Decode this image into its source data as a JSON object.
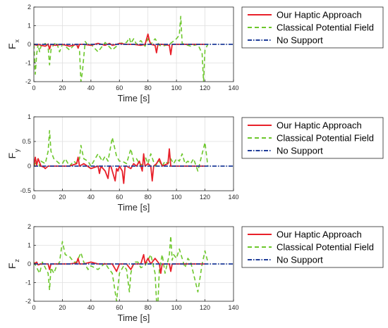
{
  "chart_data": [
    {
      "type": "line",
      "ylabel_main": "F",
      "ylabel_sub": "x",
      "xlabel": "Time [s]",
      "xlim": [
        0,
        140
      ],
      "ylim": [
        -2,
        2
      ],
      "xticks": [
        0,
        20,
        40,
        60,
        80,
        100,
        120,
        140
      ],
      "yticks": [
        -2,
        -1,
        0,
        1,
        2
      ],
      "grid": true,
      "legend_position": "right",
      "series": [
        {
          "name": "Our Haptic Approach",
          "color": "#e8202a",
          "style": "solid",
          "x": [
            0,
            2,
            3,
            5,
            8,
            10,
            11,
            12,
            15,
            20,
            25,
            30,
            31,
            32,
            33,
            35,
            40,
            45,
            50,
            53,
            55,
            58,
            60,
            65,
            70,
            75,
            78,
            80,
            81,
            82,
            85,
            86,
            87,
            90,
            95,
            96,
            97,
            100,
            105,
            110,
            120
          ],
          "y": [
            0,
            -0.05,
            0,
            -0.05,
            -0.1,
            0.02,
            -0.25,
            0,
            -0.05,
            0,
            -0.1,
            0,
            -0.2,
            0,
            0,
            0,
            -0.05,
            0.05,
            -0.05,
            0.05,
            -0.05,
            0,
            0.05,
            0,
            0,
            -0.05,
            0,
            0.55,
            0.2,
            0,
            -0.05,
            -0.45,
            0,
            0,
            -0.05,
            -0.55,
            0,
            0,
            0,
            0,
            0
          ]
        },
        {
          "name": "Classical Potential Field",
          "color": "#6cc72b",
          "style": "dashed",
          "x": [
            0,
            1,
            2,
            3,
            4,
            5,
            8,
            10,
            11,
            12,
            14,
            16,
            18,
            20,
            22,
            25,
            28,
            30,
            32,
            33,
            34,
            36,
            38,
            40,
            45,
            50,
            55,
            58,
            60,
            65,
            67,
            68,
            70,
            72,
            75,
            78,
            80,
            82,
            85,
            88,
            90,
            95,
            100,
            102,
            103,
            104,
            106,
            110,
            115,
            118,
            119,
            120,
            122
          ],
          "y": [
            0,
            -1.6,
            -0.5,
            0,
            -0.4,
            -0.1,
            0.05,
            -0.15,
            -1.1,
            -0.3,
            0,
            0.1,
            -0.4,
            0,
            -0.1,
            -0.3,
            -0.05,
            0,
            -0.3,
            -2,
            -1.5,
            0.15,
            -0.05,
            0,
            -0.4,
            0.1,
            -0.3,
            -0.1,
            0.05,
            0.1,
            0.35,
            0.05,
            0.3,
            0,
            0.2,
            -0.1,
            0.3,
            0,
            0.3,
            -0.05,
            -0.1,
            0,
            0.3,
            0.5,
            1.5,
            0.05,
            0,
            -0.1,
            0,
            -0.5,
            -2,
            -0.3,
            0
          ]
        },
        {
          "name": "No Support",
          "color": "#1f3d99",
          "style": "dashdot",
          "x": [
            0,
            140
          ],
          "y": [
            0,
            0
          ]
        }
      ]
    },
    {
      "type": "line",
      "ylabel_main": "F",
      "ylabel_sub": "y",
      "xlabel": "Time [s]",
      "xlim": [
        0,
        140
      ],
      "ylim": [
        -0.5,
        1
      ],
      "xticks": [
        0,
        20,
        40,
        60,
        80,
        100,
        120,
        140
      ],
      "yticks": [
        -0.5,
        0,
        0.5,
        1
      ],
      "grid": true,
      "legend_position": "right",
      "series": [
        {
          "name": "Our Haptic Approach",
          "color": "#e8202a",
          "style": "solid",
          "x": [
            0,
            1,
            2,
            3,
            5,
            7,
            8,
            10,
            15,
            20,
            25,
            30,
            31,
            32,
            35,
            40,
            45,
            46,
            47,
            50,
            52,
            53,
            54,
            55,
            57,
            58,
            59,
            60,
            62,
            63,
            64,
            65,
            68,
            70,
            72,
            74,
            76,
            77,
            78,
            80,
            82,
            83,
            84,
            86,
            88,
            90,
            94,
            95,
            96,
            98,
            100,
            110,
            120
          ],
          "y": [
            0,
            0.18,
            0.02,
            0.15,
            0,
            -0.02,
            -0.05,
            0,
            0,
            0,
            0,
            0.05,
            0.18,
            0,
            0.05,
            -0.05,
            0,
            -0.15,
            0,
            -0.1,
            -0.25,
            0,
            0,
            -0.1,
            -0.3,
            -0.05,
            -0.1,
            0,
            -0.1,
            -0.35,
            0,
            0,
            -0.05,
            0.05,
            0,
            0.1,
            -0.1,
            0.25,
            0,
            0.05,
            0,
            -0.3,
            0,
            0.05,
            0.15,
            0,
            0.05,
            0.35,
            0,
            0,
            0,
            0,
            0
          ]
        },
        {
          "name": "Classical Potential Field",
          "color": "#6cc72b",
          "style": "dashed",
          "x": [
            0,
            2,
            3,
            4,
            5,
            8,
            10,
            11,
            12,
            14,
            18,
            20,
            22,
            25,
            28,
            30,
            32,
            33,
            35,
            38,
            40,
            45,
            48,
            50,
            52,
            55,
            58,
            60,
            62,
            65,
            68,
            70,
            72,
            75,
            78,
            80,
            82,
            85,
            88,
            90,
            92,
            94,
            96,
            98,
            100,
            102,
            104,
            106,
            108,
            110,
            112,
            115,
            118,
            120,
            122
          ],
          "y": [
            0,
            0.1,
            0.15,
            0,
            0.1,
            0.05,
            0.3,
            0.72,
            0.3,
            0.15,
            0.05,
            0.05,
            0.15,
            0,
            0.1,
            0.05,
            0.15,
            0.42,
            0.15,
            0.1,
            0,
            0.25,
            0.1,
            0.2,
            0.1,
            0.58,
            0.2,
            0.1,
            0.1,
            0.05,
            0.35,
            0.1,
            0.15,
            0,
            0.2,
            0.05,
            0.25,
            0,
            0.1,
            0,
            0.1,
            0.05,
            0.15,
            0.05,
            0.15,
            0.1,
            0.25,
            0.05,
            0.1,
            0.05,
            0.15,
            -0.1,
            0.25,
            0.48,
            0
          ]
        },
        {
          "name": "No Support",
          "color": "#1f3d99",
          "style": "dashdot",
          "x": [
            0,
            140
          ],
          "y": [
            0,
            0
          ]
        }
      ]
    },
    {
      "type": "line",
      "ylabel_main": "F",
      "ylabel_sub": "z",
      "xlabel": "Time [s]",
      "xlim": [
        0,
        140
      ],
      "ylim": [
        -2,
        2
      ],
      "xticks": [
        0,
        20,
        40,
        60,
        80,
        100,
        120,
        140
      ],
      "yticks": [
        -2,
        -1,
        0,
        1,
        2
      ],
      "grid": true,
      "legend_position": "right",
      "series": [
        {
          "name": "Our Haptic Approach",
          "color": "#e8202a",
          "style": "solid",
          "x": [
            0,
            2,
            3,
            5,
            10,
            11,
            12,
            15,
            20,
            25,
            30,
            31,
            32,
            35,
            40,
            45,
            50,
            55,
            58,
            60,
            65,
            68,
            70,
            75,
            77,
            78,
            80,
            82,
            85,
            88,
            89,
            90,
            95,
            96,
            97,
            100,
            110,
            120
          ],
          "y": [
            0,
            0.1,
            -0.05,
            0,
            0,
            -0.3,
            0,
            0,
            0,
            0,
            0.05,
            0.3,
            0,
            0,
            0.1,
            0,
            0,
            0,
            -0.4,
            0,
            0,
            -0.3,
            0,
            0,
            0.5,
            0,
            0.3,
            0,
            0.3,
            0,
            -0.5,
            0,
            0,
            -0.4,
            0,
            0,
            0,
            0
          ]
        },
        {
          "name": "Classical Potential Field",
          "color": "#6cc72b",
          "style": "dashed",
          "x": [
            0,
            2,
            4,
            6,
            8,
            10,
            11,
            12,
            14,
            16,
            18,
            20,
            22,
            25,
            28,
            30,
            33,
            35,
            38,
            40,
            45,
            50,
            52,
            55,
            58,
            60,
            63,
            65,
            67,
            68,
            70,
            73,
            75,
            78,
            80,
            82,
            85,
            86,
            87,
            88,
            90,
            92,
            95,
            96,
            97,
            98,
            100,
            102,
            104,
            106,
            108,
            110,
            115,
            118,
            120,
            122
          ],
          "y": [
            0.1,
            -0.2,
            -0.5,
            0.1,
            -0.2,
            -0.5,
            -1.4,
            -0.2,
            -0.5,
            -0.1,
            0.1,
            1.2,
            0.5,
            0.4,
            0.1,
            0.1,
            0.6,
            0.1,
            -0.3,
            -0.1,
            -0.3,
            0.05,
            -0.2,
            -0.5,
            -2,
            -0.5,
            -0.1,
            -0.3,
            -1.5,
            -0.5,
            0.1,
            0.1,
            -0.2,
            -0.1,
            0.2,
            0.5,
            -0.5,
            -2,
            -2.1,
            -0.3,
            0.5,
            -0.5,
            0.5,
            1.5,
            0.2,
            0.5,
            0.3,
            0.8,
            0.3,
            -0.2,
            0.3,
            0.1,
            -1.5,
            0,
            0.7,
            0.1
          ]
        },
        {
          "name": "No Support",
          "color": "#1f3d99",
          "style": "dashdot",
          "x": [
            0,
            140
          ],
          "y": [
            0,
            0
          ]
        }
      ]
    }
  ]
}
